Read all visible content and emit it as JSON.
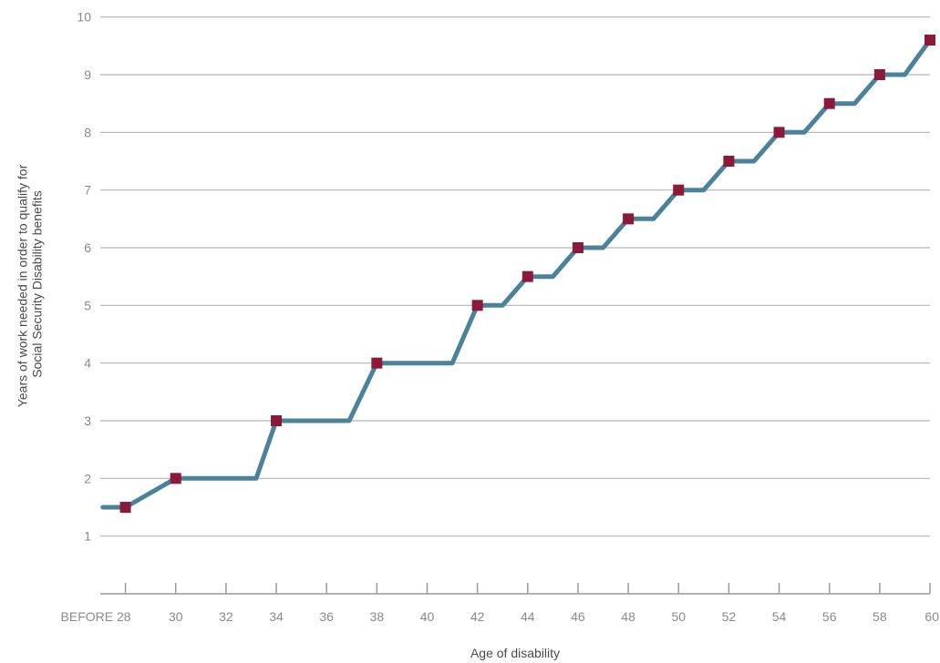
{
  "chart_data": {
    "type": "line",
    "xlabel": "Age of disability",
    "ylabel_lines": [
      "Years of work needed in order to qualify for",
      "Social Security Disability benefits"
    ],
    "ylim": [
      0,
      10
    ],
    "yticks": [
      1,
      2,
      3,
      4,
      5,
      6,
      7,
      8,
      9,
      10
    ],
    "xlim": [
      27,
      60
    ],
    "xticks": [
      {
        "value": 28,
        "label": "BEFORE 28"
      },
      {
        "value": 30,
        "label": "30"
      },
      {
        "value": 32,
        "label": "32"
      },
      {
        "value": 34,
        "label": "34"
      },
      {
        "value": 36,
        "label": "36"
      },
      {
        "value": 38,
        "label": "38"
      },
      {
        "value": 40,
        "label": "40"
      },
      {
        "value": 42,
        "label": "42"
      },
      {
        "value": 44,
        "label": "44"
      },
      {
        "value": 46,
        "label": "46"
      },
      {
        "value": 48,
        "label": "48"
      },
      {
        "value": 50,
        "label": "50"
      },
      {
        "value": 52,
        "label": "52"
      },
      {
        "value": 54,
        "label": "54"
      },
      {
        "value": 56,
        "label": "56"
      },
      {
        "value": 58,
        "label": "58"
      },
      {
        "value": 60,
        "label": "60"
      }
    ],
    "line_path": [
      [
        27.1,
        1.5
      ],
      [
        28,
        1.5
      ],
      [
        30,
        2
      ],
      [
        33.2,
        2
      ],
      [
        34,
        3
      ],
      [
        36.9,
        3
      ],
      [
        38,
        4
      ],
      [
        41,
        4
      ],
      [
        42,
        5
      ],
      [
        43,
        5
      ],
      [
        44,
        5.5
      ],
      [
        45,
        5.5
      ],
      [
        46,
        6
      ],
      [
        47,
        6
      ],
      [
        48,
        6.5
      ],
      [
        49,
        6.5
      ],
      [
        50,
        7
      ],
      [
        51,
        7
      ],
      [
        52,
        7.5
      ],
      [
        53,
        7.5
      ],
      [
        54,
        8
      ],
      [
        55,
        8
      ],
      [
        56,
        8.5
      ],
      [
        57,
        8.5
      ],
      [
        58,
        9
      ],
      [
        59,
        9
      ],
      [
        60,
        9.6
      ]
    ],
    "markers": [
      [
        28,
        1.5
      ],
      [
        30,
        2
      ],
      [
        34,
        3
      ],
      [
        38,
        4
      ],
      [
        42,
        5
      ],
      [
        44,
        5.5
      ],
      [
        46,
        6
      ],
      [
        48,
        6.5
      ],
      [
        50,
        7
      ],
      [
        52,
        7.5
      ],
      [
        54,
        8
      ],
      [
        56,
        8.5
      ],
      [
        58,
        9
      ],
      [
        60,
        9.6
      ]
    ],
    "line_color": "#4a8399",
    "marker_color": "#8b1a3a",
    "grid_color": "#b5b5b5",
    "grid": true,
    "legend": "none"
  }
}
